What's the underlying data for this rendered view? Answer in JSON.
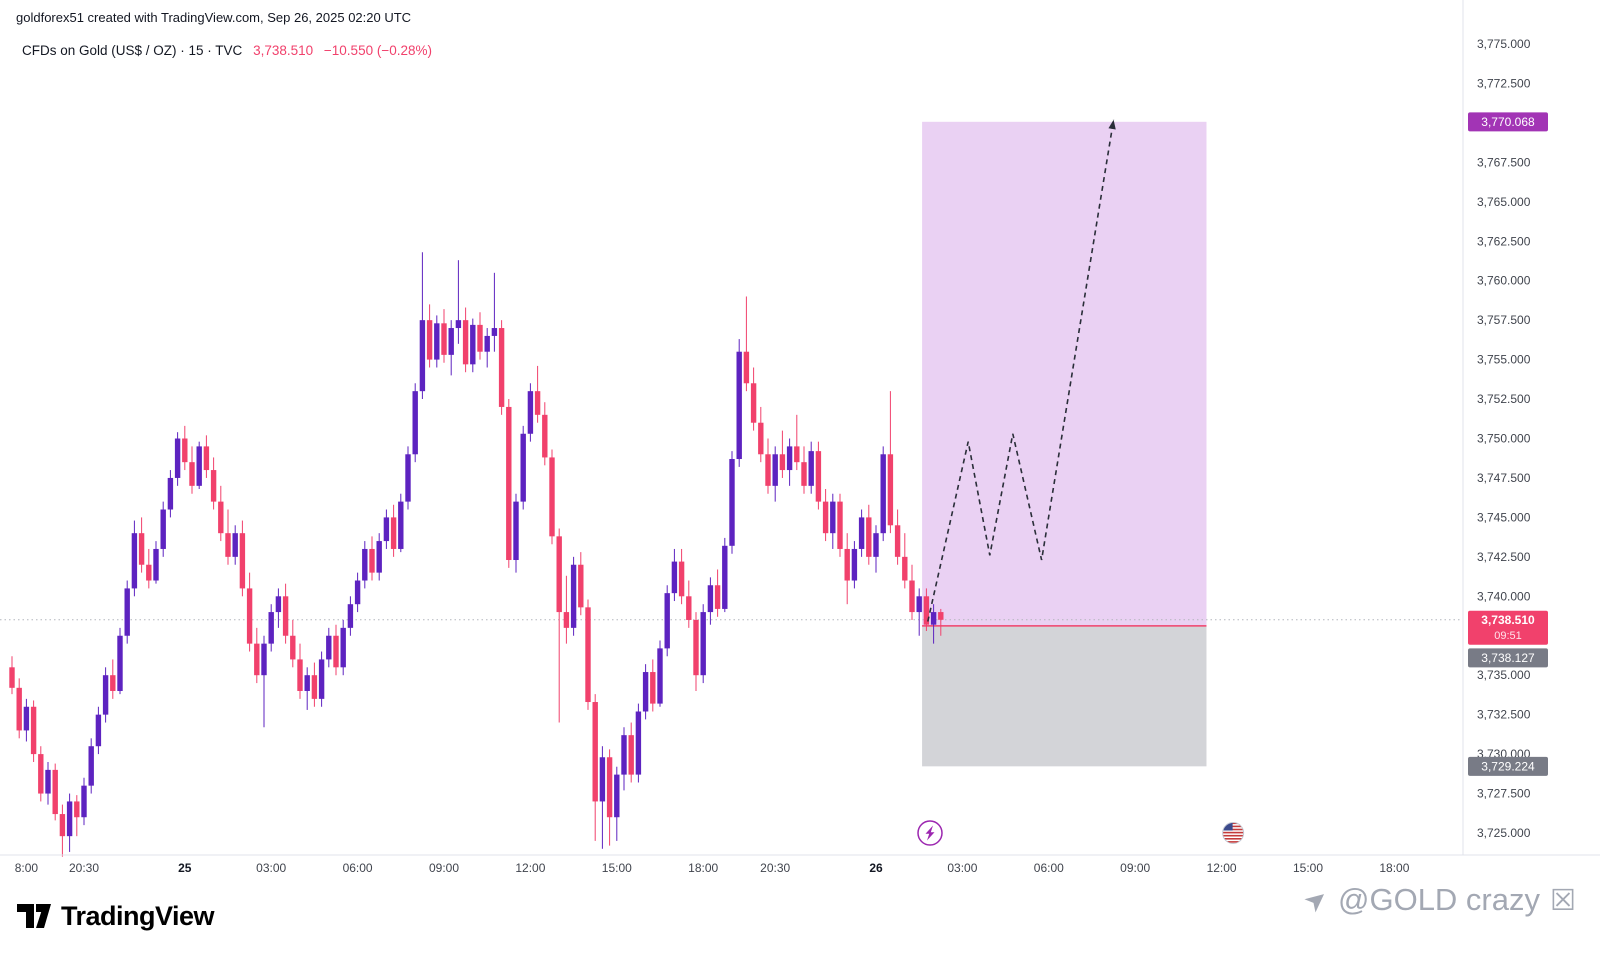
{
  "header": {
    "watermark": "goldforex51 created with TradingView.com, Sep 26, 2025 02:20 UTC"
  },
  "legend": {
    "symbol": "CFDs on Gold (US$ / OZ) · 15 · TVC",
    "price": "3,738.510",
    "change": "−10.550 (−0.28%)"
  },
  "footer": {
    "logo_text": "TradingView",
    "watermark_prefix": "➤",
    "watermark_text": "@GOLD crazy",
    "watermark_suffix": "☒"
  },
  "colors": {
    "up": "#5d23c0",
    "down": "#f1416c",
    "zone_long": "rgba(187,104,216,0.30)",
    "zone_stop": "rgba(130,133,142,0.35)",
    "target_badge": "#a234b5",
    "gray_badge": "#787b86",
    "price_badge": "#f1416c",
    "projection_line": "#2a2e39",
    "axis_text": "#40444d",
    "axis_border": "#e0e3eb",
    "price_line": "#b3b6bd"
  },
  "chart_data": {
    "type": "candlestick",
    "title": "CFDs on Gold (US$ / OZ)",
    "interval": "15",
    "exchange": "TVC",
    "last_price": 3738.51,
    "change": -10.55,
    "change_pct": -0.28,
    "y_axis": {
      "min": 3725,
      "max": 3775,
      "step": 2.5,
      "ticks": [
        [
          3775,
          "3,775.000"
        ],
        [
          3772.5,
          "3,772.500"
        ],
        [
          3767.5,
          "3,767.500"
        ],
        [
          3765,
          "3,765.000"
        ],
        [
          3762.5,
          "3,762.500"
        ],
        [
          3760,
          "3,760.000"
        ],
        [
          3757.5,
          "3,757.500"
        ],
        [
          3755,
          "3,755.000"
        ],
        [
          3752.5,
          "3,752.500"
        ],
        [
          3750,
          "3,750.000"
        ],
        [
          3747.5,
          "3,747.500"
        ],
        [
          3745,
          "3,745.000"
        ],
        [
          3742.5,
          "3,742.500"
        ],
        [
          3740,
          "3,740.000"
        ],
        [
          3735,
          "3,735.000"
        ],
        [
          3732.5,
          "3,732.500"
        ],
        [
          3730,
          "3,730.000"
        ],
        [
          3727.5,
          "3,727.500"
        ],
        [
          3725,
          "3,725.000"
        ]
      ]
    },
    "x_axis": {
      "ticks": [
        [
          2,
          "8:00",
          false
        ],
        [
          10,
          "20:30",
          false
        ],
        [
          24,
          "25",
          true
        ],
        [
          36,
          "03:00",
          false
        ],
        [
          48,
          "06:00",
          false
        ],
        [
          60,
          "09:00",
          false
        ],
        [
          72,
          "12:00",
          false
        ],
        [
          84,
          "15:00",
          false
        ],
        [
          96,
          "18:00",
          false
        ],
        [
          106,
          "20:30",
          false
        ],
        [
          120,
          "26",
          true
        ],
        [
          132,
          "03:00",
          false
        ],
        [
          144,
          "06:00",
          false
        ],
        [
          156,
          "09:00",
          false
        ],
        [
          168,
          "12:00",
          false
        ],
        [
          180,
          "15:00",
          false
        ],
        [
          192,
          "18:00",
          false
        ]
      ]
    },
    "candles": [
      [
        3735.5,
        3736.2,
        3733.8,
        3734.2
      ],
      [
        3734.2,
        3734.8,
        3731.0,
        3731.5
      ],
      [
        3731.5,
        3733.5,
        3730.8,
        3733.0
      ],
      [
        3733.0,
        3733.4,
        3729.5,
        3730.0
      ],
      [
        3730.0,
        3730.5,
        3727.0,
        3727.5
      ],
      [
        3727.5,
        3729.5,
        3726.8,
        3729.0
      ],
      [
        3729.0,
        3729.4,
        3725.8,
        3726.2
      ],
      [
        3726.2,
        3726.8,
        3723.5,
        3724.8
      ],
      [
        3724.8,
        3727.5,
        3723.8,
        3727.0
      ],
      [
        3727.0,
        3727.4,
        3724.8,
        3726.0
      ],
      [
        3726.0,
        3728.5,
        3725.5,
        3728.0
      ],
      [
        3728.0,
        3731.0,
        3727.5,
        3730.5
      ],
      [
        3730.5,
        3733.0,
        3730.0,
        3732.5
      ],
      [
        3732.5,
        3735.5,
        3732.0,
        3735.0
      ],
      [
        3735.0,
        3736.0,
        3733.5,
        3734.0
      ],
      [
        3734.0,
        3738.0,
        3733.8,
        3737.5
      ],
      [
        3737.5,
        3741.0,
        3737.0,
        3740.5
      ],
      [
        3740.5,
        3744.8,
        3740.0,
        3744.0
      ],
      [
        3744.0,
        3745.0,
        3741.5,
        3742.0
      ],
      [
        3742.0,
        3743.0,
        3740.5,
        3741.0
      ],
      [
        3741.0,
        3743.5,
        3740.8,
        3743.0
      ],
      [
        3743.0,
        3746.0,
        3742.5,
        3745.5
      ],
      [
        3745.5,
        3748.0,
        3745.0,
        3747.5
      ],
      [
        3747.5,
        3750.4,
        3747.0,
        3750.0
      ],
      [
        3750.0,
        3750.8,
        3748.0,
        3748.5
      ],
      [
        3748.5,
        3749.5,
        3746.5,
        3747.0
      ],
      [
        3747.0,
        3749.8,
        3746.8,
        3749.5
      ],
      [
        3749.5,
        3750.2,
        3747.5,
        3748.0
      ],
      [
        3748.0,
        3748.8,
        3745.5,
        3746.0
      ],
      [
        3746.0,
        3747.0,
        3743.5,
        3744.0
      ],
      [
        3744.0,
        3745.5,
        3742.0,
        3742.5
      ],
      [
        3742.5,
        3744.5,
        3742.0,
        3744.0
      ],
      [
        3744.0,
        3744.8,
        3740.0,
        3740.5
      ],
      [
        3740.5,
        3741.5,
        3736.5,
        3737.0
      ],
      [
        3737.0,
        3738.0,
        3734.5,
        3735.0
      ],
      [
        3735.0,
        3737.5,
        3731.7,
        3737.0
      ],
      [
        3737.0,
        3739.5,
        3736.5,
        3739.0
      ],
      [
        3739.0,
        3740.5,
        3738.0,
        3740.0
      ],
      [
        3740.0,
        3740.8,
        3737.0,
        3737.5
      ],
      [
        3737.5,
        3738.5,
        3735.5,
        3736.0
      ],
      [
        3736.0,
        3737.0,
        3733.5,
        3734.0
      ],
      [
        3734.0,
        3735.5,
        3732.8,
        3735.0
      ],
      [
        3735.0,
        3735.8,
        3733.0,
        3733.5
      ],
      [
        3733.5,
        3736.5,
        3733.0,
        3736.0
      ],
      [
        3736.0,
        3738.0,
        3735.5,
        3737.5
      ],
      [
        3737.5,
        3738.2,
        3735.0,
        3735.5
      ],
      [
        3735.5,
        3738.5,
        3735.0,
        3738.0
      ],
      [
        3738.0,
        3740.0,
        3737.5,
        3739.5
      ],
      [
        3739.5,
        3741.5,
        3739.0,
        3741.0
      ],
      [
        3741.0,
        3743.5,
        3740.5,
        3743.0
      ],
      [
        3743.0,
        3743.8,
        3741.0,
        3741.5
      ],
      [
        3741.5,
        3744.0,
        3741.0,
        3743.5
      ],
      [
        3743.5,
        3745.5,
        3743.0,
        3745.0
      ],
      [
        3745.0,
        3745.8,
        3742.5,
        3743.0
      ],
      [
        3743.0,
        3746.5,
        3742.8,
        3746.0
      ],
      [
        3746.0,
        3749.5,
        3745.5,
        3749.0
      ],
      [
        3749.0,
        3753.5,
        3748.5,
        3753.0
      ],
      [
        3753.0,
        3761.8,
        3752.5,
        3757.5
      ],
      [
        3757.5,
        3758.5,
        3754.5,
        3755.0
      ],
      [
        3755.0,
        3757.8,
        3754.5,
        3757.3
      ],
      [
        3757.3,
        3758.2,
        3754.8,
        3755.3
      ],
      [
        3755.3,
        3757.5,
        3754.0,
        3757.0
      ],
      [
        3757.0,
        3761.3,
        3756.0,
        3757.5
      ],
      [
        3757.5,
        3758.3,
        3754.2,
        3754.7
      ],
      [
        3754.7,
        3757.6,
        3754.2,
        3757.2
      ],
      [
        3757.2,
        3758.0,
        3755.0,
        3755.5
      ],
      [
        3755.5,
        3757.0,
        3754.5,
        3756.5
      ],
      [
        3756.5,
        3760.5,
        3755.5,
        3757.0
      ],
      [
        3757.0,
        3757.5,
        3751.5,
        3752.0
      ],
      [
        3752.0,
        3752.5,
        3741.8,
        3742.3
      ],
      [
        3742.3,
        3746.5,
        3741.5,
        3746.0
      ],
      [
        3746.0,
        3750.8,
        3745.5,
        3750.3
      ],
      [
        3750.3,
        3753.5,
        3749.8,
        3753.0
      ],
      [
        3753.0,
        3754.6,
        3751.0,
        3751.5
      ],
      [
        3751.5,
        3752.3,
        3748.3,
        3748.8
      ],
      [
        3748.8,
        3749.3,
        3743.3,
        3743.8
      ],
      [
        3743.8,
        3744.3,
        3732.0,
        3739.0
      ],
      [
        3739.0,
        3741.3,
        3737.0,
        3738.0
      ],
      [
        3738.0,
        3742.5,
        3737.5,
        3742.0
      ],
      [
        3742.0,
        3742.8,
        3738.8,
        3739.3
      ],
      [
        3739.3,
        3739.8,
        3732.8,
        3733.3
      ],
      [
        3733.3,
        3733.8,
        3724.5,
        3727.0
      ],
      [
        3727.0,
        3730.5,
        3724.0,
        3729.8
      ],
      [
        3729.8,
        3730.3,
        3724.2,
        3726.0
      ],
      [
        3726.0,
        3729.2,
        3724.5,
        3728.7
      ],
      [
        3728.7,
        3731.7,
        3727.7,
        3731.2
      ],
      [
        3731.2,
        3732.0,
        3728.2,
        3728.7
      ],
      [
        3728.7,
        3733.2,
        3728.2,
        3732.7
      ],
      [
        3732.7,
        3735.7,
        3732.2,
        3735.2
      ],
      [
        3735.2,
        3736.0,
        3732.7,
        3733.2
      ],
      [
        3733.2,
        3737.2,
        3733.0,
        3736.7
      ],
      [
        3736.7,
        3740.7,
        3736.2,
        3740.2
      ],
      [
        3740.2,
        3743.0,
        3739.7,
        3742.2
      ],
      [
        3742.2,
        3743.0,
        3739.5,
        3740.0
      ],
      [
        3740.0,
        3741.0,
        3738.0,
        3738.5
      ],
      [
        3738.5,
        3739.0,
        3734.0,
        3735.0
      ],
      [
        3735.0,
        3739.5,
        3734.5,
        3739.0
      ],
      [
        3739.0,
        3741.2,
        3738.2,
        3740.7
      ],
      [
        3740.7,
        3741.7,
        3738.7,
        3739.2
      ],
      [
        3739.2,
        3743.7,
        3739.0,
        3743.2
      ],
      [
        3743.2,
        3749.2,
        3742.7,
        3748.7
      ],
      [
        3748.7,
        3756.3,
        3748.2,
        3755.5
      ],
      [
        3755.5,
        3759.0,
        3753.0,
        3753.5
      ],
      [
        3753.5,
        3754.5,
        3750.5,
        3751.0
      ],
      [
        3751.0,
        3752.0,
        3748.5,
        3749.0
      ],
      [
        3749.0,
        3750.0,
        3746.5,
        3747.0
      ],
      [
        3747.0,
        3749.5,
        3746.0,
        3749.0
      ],
      [
        3749.0,
        3750.5,
        3747.5,
        3748.0
      ],
      [
        3748.0,
        3750.0,
        3747.0,
        3749.5
      ],
      [
        3749.5,
        3751.5,
        3748.0,
        3748.5
      ],
      [
        3748.5,
        3749.5,
        3746.5,
        3747.0
      ],
      [
        3747.0,
        3749.8,
        3746.5,
        3749.2
      ],
      [
        3749.2,
        3749.8,
        3745.5,
        3746.0
      ],
      [
        3746.0,
        3746.8,
        3743.5,
        3744.0
      ],
      [
        3744.0,
        3746.5,
        3743.0,
        3746.0
      ],
      [
        3746.0,
        3746.5,
        3742.5,
        3743.0
      ],
      [
        3743.0,
        3744.0,
        3739.5,
        3741.0
      ],
      [
        3741.0,
        3743.5,
        3740.5,
        3743.0
      ],
      [
        3743.0,
        3745.5,
        3742.5,
        3745.0
      ],
      [
        3745.0,
        3745.8,
        3742.0,
        3742.5
      ],
      [
        3742.5,
        3744.5,
        3741.5,
        3744.0
      ],
      [
        3744.0,
        3749.5,
        3743.5,
        3749.0
      ],
      [
        3749.0,
        3753.0,
        3744.0,
        3744.5
      ],
      [
        3744.5,
        3745.5,
        3742.0,
        3742.5
      ],
      [
        3742.5,
        3744.0,
        3740.5,
        3741.0
      ],
      [
        3741.0,
        3742.0,
        3738.5,
        3739.0
      ],
      [
        3739.0,
        3740.5,
        3737.5,
        3740.0
      ],
      [
        3740.0,
        3740.5,
        3737.8,
        3738.2
      ],
      [
        3738.2,
        3739.5,
        3737.0,
        3739.0
      ],
      [
        3739.0,
        3739.2,
        3737.5,
        3738.51
      ]
    ],
    "projection": {
      "box_start": 126.4,
      "box_end": 165.9,
      "target": 3770.068,
      "entry": 3738.127,
      "stop": 3729.224,
      "zigzag": [
        [
          127.2,
          3738.4
        ],
        [
          132.8,
          3749.8
        ],
        [
          135.8,
          3742.6
        ],
        [
          139.0,
          3750.3
        ],
        [
          143.0,
          3742.3
        ],
        [
          153.0,
          3770.2
        ]
      ]
    },
    "badges": {
      "target": "3,770.068",
      "current": "3,738.510",
      "countdown": "09:51",
      "entry": "3,738.127",
      "stop": "3,729.224"
    },
    "event_icons": [
      {
        "name": "lightning",
        "index": 127.5
      },
      {
        "name": "us-flag",
        "index": 169.6
      }
    ]
  }
}
